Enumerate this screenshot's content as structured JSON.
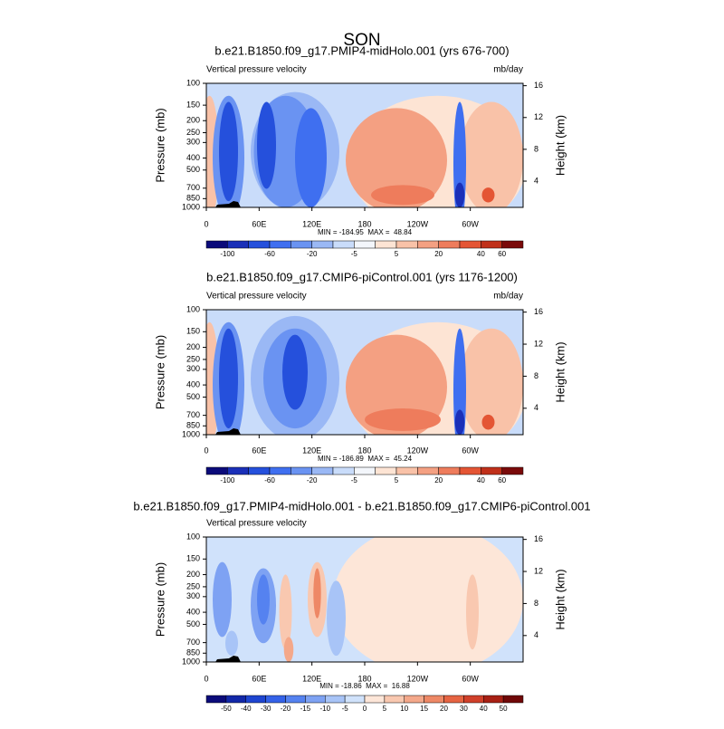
{
  "title": "SON",
  "chart_data": [
    {
      "type": "contour",
      "subtitle": "b.e21.B1850.f09_g17.PMIP4-midHolo.001 (yrs 676-700)",
      "left_label": "Vertical pressure velocity",
      "right_label": "mb/day",
      "y_label": "Pressure (mb)",
      "y2_label": "Height (km)",
      "y_log": true,
      "ylim": [
        100,
        1000
      ],
      "yticks": [
        100,
        150,
        200,
        250,
        300,
        400,
        500,
        700,
        850,
        1000
      ],
      "y2lim": [
        0.7,
        16.3
      ],
      "y2ticks": [
        4,
        8,
        12,
        16
      ],
      "xlim": [
        0,
        360
      ],
      "xticks": [
        0,
        {
          "value": 60,
          "label": "60E"
        },
        {
          "value": 120,
          "label": "120E"
        },
        180,
        {
          "value": 240,
          "label": "120W"
        },
        {
          "value": 300,
          "label": "60W"
        }
      ],
      "stats": "MIN = -184.95  MAX =  48.84",
      "colorbar": {
        "colors": [
          "#0b0b7a",
          "#1a2fb8",
          "#2550dc",
          "#3f6ff0",
          "#6a93f2",
          "#9ab8f5",
          "#c9dcfa",
          "#f3f6fb",
          "#fde4d4",
          "#f9c2a8",
          "#f4a082",
          "#ee7c5c",
          "#e45534",
          "#c0301a",
          "#7a0a0a"
        ],
        "labels": [
          -100,
          -60,
          -20,
          -5,
          5,
          20,
          40,
          60
        ]
      }
    },
    {
      "type": "contour",
      "subtitle": "b.e21.B1850.f09_g17.CMIP6-piControl.001 (yrs 1176-1200)",
      "left_label": "Vertical pressure velocity",
      "right_label": "mb/day",
      "y_label": "Pressure (mb)",
      "y2_label": "Height (km)",
      "y_log": true,
      "ylim": [
        100,
        1000
      ],
      "yticks": [
        100,
        150,
        200,
        250,
        300,
        400,
        500,
        700,
        850,
        1000
      ],
      "y2lim": [
        0.7,
        16.3
      ],
      "y2ticks": [
        4,
        8,
        12,
        16
      ],
      "xlim": [
        0,
        360
      ],
      "xticks": [
        0,
        {
          "value": 60,
          "label": "60E"
        },
        {
          "value": 120,
          "label": "120E"
        },
        180,
        {
          "value": 240,
          "label": "120W"
        },
        {
          "value": 300,
          "label": "60W"
        }
      ],
      "stats": "MIN = -186.89  MAX =  45.24",
      "colorbar": {
        "colors": [
          "#0b0b7a",
          "#1a2fb8",
          "#2550dc",
          "#3f6ff0",
          "#6a93f2",
          "#9ab8f5",
          "#c9dcfa",
          "#f3f6fb",
          "#fde4d4",
          "#f9c2a8",
          "#f4a082",
          "#ee7c5c",
          "#e45534",
          "#c0301a",
          "#7a0a0a"
        ],
        "labels": [
          -100,
          -60,
          -20,
          -5,
          5,
          20,
          40,
          60
        ]
      }
    },
    {
      "type": "contour",
      "subtitle": "b.e21.B1850.f09_g17.PMIP4-midHolo.001 - b.e21.B1850.f09_g17.CMIP6-piControl.001",
      "left_label": "Vertical pressure velocity",
      "right_label": "",
      "y_label": "Pressure (mb)",
      "y2_label": "Height (km)",
      "y_log": true,
      "ylim": [
        100,
        1000
      ],
      "yticks": [
        100,
        150,
        200,
        250,
        300,
        400,
        500,
        700,
        850,
        1000
      ],
      "y2lim": [
        0.7,
        16.3
      ],
      "y2ticks": [
        4,
        8,
        12,
        16
      ],
      "xlim": [
        0,
        360
      ],
      "xticks": [
        0,
        {
          "value": 60,
          "label": "60E"
        },
        {
          "value": 120,
          "label": "120E"
        },
        180,
        {
          "value": 240,
          "label": "120W"
        },
        {
          "value": 300,
          "label": "60W"
        }
      ],
      "stats": "MIN = -18.86  MAX =  16.88",
      "colorbar": {
        "colors": [
          "#0b0b7a",
          "#1228a8",
          "#1e45d0",
          "#3462e8",
          "#5582f0",
          "#7ea2f3",
          "#a8c4f7",
          "#d0e2fb",
          "#fde6d8",
          "#f9c8b0",
          "#f4a88a",
          "#ee8866",
          "#e66442",
          "#d0402a",
          "#a82014",
          "#700808"
        ],
        "labels": [
          -50,
          -40,
          -30,
          -20,
          -15,
          -10,
          -5,
          0,
          5,
          10,
          15,
          20,
          30,
          40,
          50
        ]
      }
    }
  ]
}
